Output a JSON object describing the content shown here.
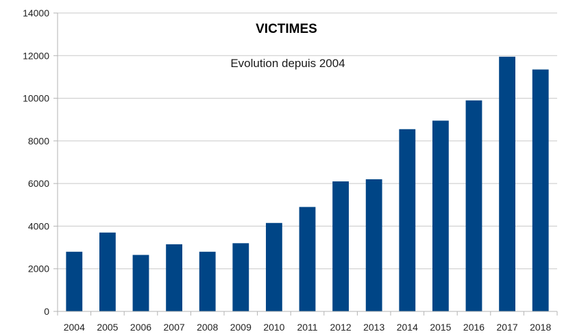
{
  "chart_data": {
    "type": "bar",
    "title": "VICTIMES",
    "subtitle": "Evolution depuis 2004",
    "xlabel": "",
    "ylabel": "",
    "categories": [
      "2004",
      "2005",
      "2006",
      "2007",
      "2008",
      "2009",
      "2010",
      "2011",
      "2012",
      "2013",
      "2014",
      "2015",
      "2016",
      "2017",
      "2018"
    ],
    "values": [
      2800,
      3700,
      2650,
      3150,
      2800,
      3200,
      4150,
      4900,
      6100,
      6200,
      8550,
      8950,
      9900,
      11950,
      11350
    ],
    "ylim": [
      0,
      14000
    ],
    "yticks": [
      "0",
      "2000",
      "4000",
      "6000",
      "8000",
      "10000",
      "12000",
      "14000"
    ],
    "grid": true,
    "legend": "none",
    "colors": {
      "bar": "#004586",
      "grid": "#c8c8c8",
      "axis": "#b3b3b3"
    }
  }
}
